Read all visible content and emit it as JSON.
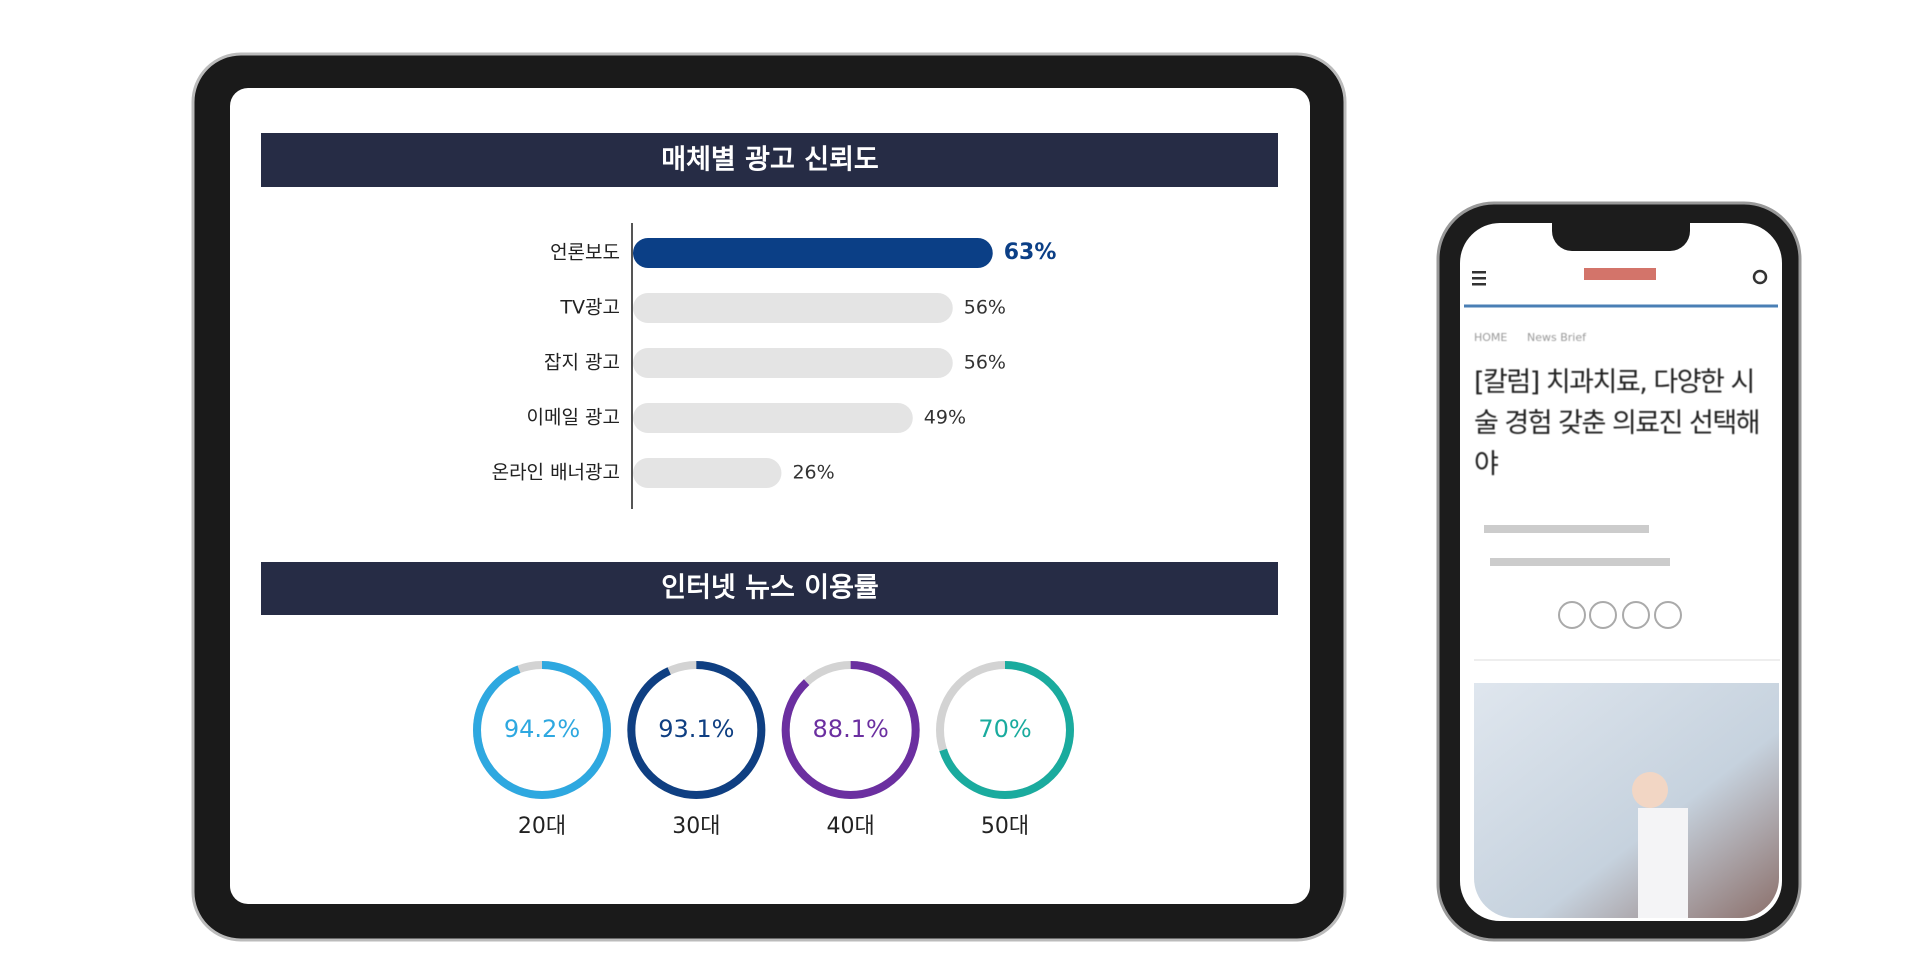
{
  "chart_data": [
    {
      "type": "bar",
      "title": "매체별 광고 신뢰도",
      "categories": [
        "언론보도",
        "TV광고",
        "잡지 광고",
        "이메일 광고",
        "온라인 배너광고"
      ],
      "values": [
        63,
        56,
        56,
        49,
        26
      ],
      "value_labels": [
        "63%",
        "56%",
        "56%",
        "49%",
        "26%"
      ],
      "colors": [
        "#0b3f86",
        "#e4e4e4",
        "#e4e4e4",
        "#e4e4e4",
        "#e4e4e4"
      ]
    },
    {
      "type": "donut",
      "title": "인터넷 뉴스 이용률",
      "categories": [
        "20대",
        "30대",
        "40대",
        "50대"
      ],
      "values": [
        94.2,
        93.1,
        88.1,
        70
      ],
      "value_labels": [
        "94.2%",
        "93.1%",
        "88.1%",
        "70%"
      ],
      "colors": [
        "#2ea8e0",
        "#0f3f82",
        "#6b2fa0",
        "#1aab9e"
      ]
    }
  ],
  "phone": {
    "breadcrumb": [
      "HOME",
      "News Brief"
    ],
    "title": "[칼럼] 치과치료, 다양한 시술 경험 갖춘 의료진 선택해야"
  }
}
